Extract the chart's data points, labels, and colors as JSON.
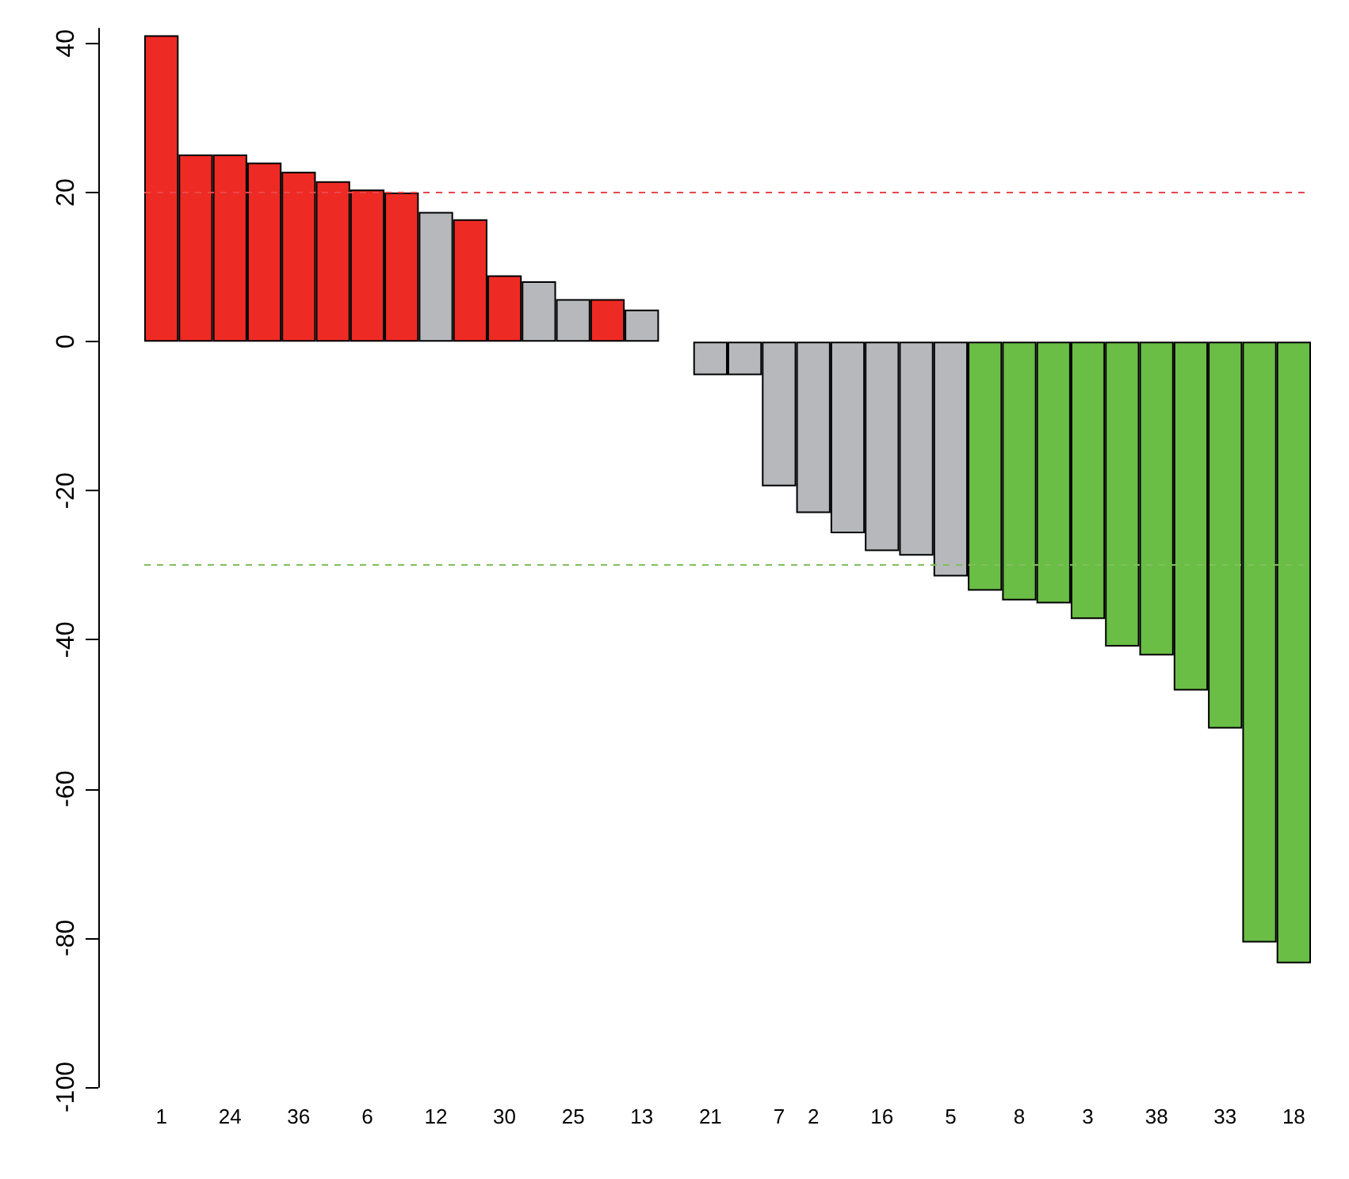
{
  "chart_data": {
    "type": "bar",
    "categories": [
      "1",
      null,
      "24",
      null,
      "36",
      null,
      "6",
      null,
      "12",
      null,
      "30",
      null,
      "25",
      null,
      "13",
      null,
      "21",
      null,
      "7",
      "2",
      null,
      "16",
      null,
      "5",
      null,
      "8",
      null,
      "3",
      null,
      "38",
      null,
      "33",
      null,
      "18"
    ],
    "values": [
      41.1,
      25.1,
      25.1,
      24.0,
      22.8,
      21.5,
      20.4,
      20.0,
      17.4,
      16.4,
      8.9,
      8.1,
      5.7,
      5.7,
      4.3,
      null,
      -4.5,
      -4.5,
      -19.4,
      -23.0,
      -25.7,
      -28.1,
      -28.7,
      -31.5,
      -33.4,
      -34.7,
      -35.1,
      -37.2,
      -40.9,
      -42.1,
      -46.8,
      -51.9,
      -80.6,
      -83.4
    ],
    "colors": [
      "#ee2a24",
      "#ee2a24",
      "#ee2a24",
      "#ee2a24",
      "#ee2a24",
      "#ee2a24",
      "#ee2a24",
      "#ee2a24",
      "#b7b8bc",
      "#ee2a24",
      "#ee2a24",
      "#b7b8bc",
      "#b7b8bc",
      "#ee2a24",
      "#b7b8bc",
      "#b7b8bc",
      "#b7b8bc",
      "#b7b8bc",
      "#b7b8bc",
      "#b7b8bc",
      "#b7b8bc",
      "#b7b8bc",
      "#b7b8bc",
      "#b7b8bc",
      "#6abd45",
      "#6abd45",
      "#6abd45",
      "#6abd45",
      "#6abd45",
      "#6abd45",
      "#6abd45",
      "#6abd45",
      "#6abd45",
      "#6abd45"
    ],
    "ylim": [
      -100,
      42
    ],
    "yticks": [
      -100,
      -80,
      -60,
      -40,
      -20,
      0,
      20,
      40
    ],
    "ref_lines": [
      {
        "axis": "y",
        "value": 20,
        "color": "#e8474b",
        "line_style": "dashed"
      },
      {
        "axis": "y",
        "value": -30,
        "color": "#7fbf5a",
        "line_style": "dashed"
      }
    ],
    "grid": false
  }
}
